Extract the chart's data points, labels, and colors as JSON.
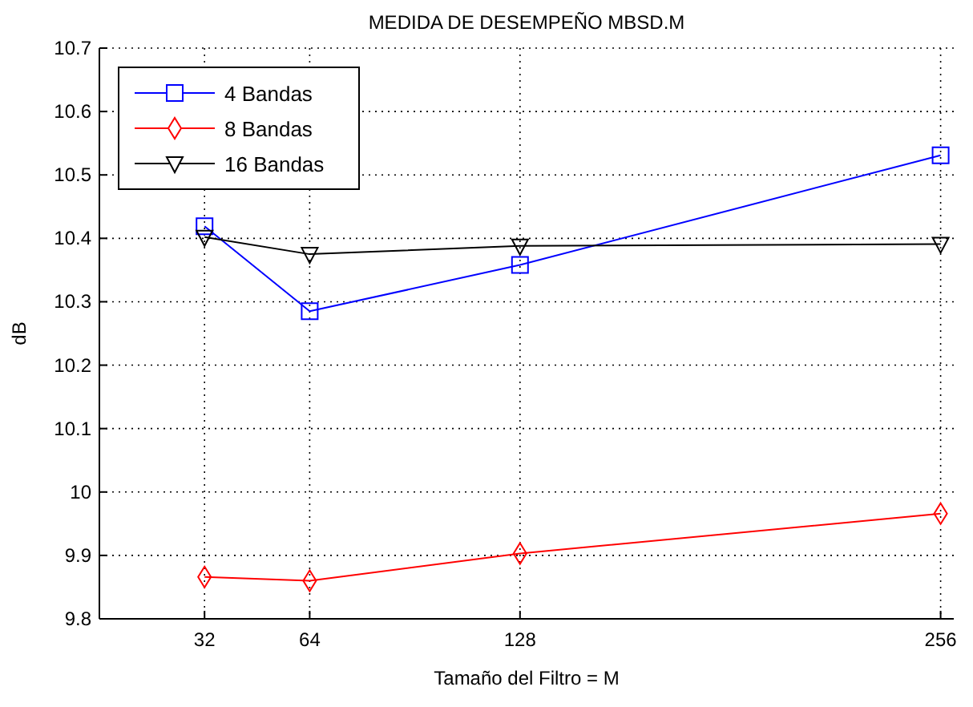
{
  "chart_data": {
    "type": "line",
    "title": "MEDIDA DE DESEMPEÑO MBSD.M",
    "xlabel": "Tamaño del Filtro = M",
    "ylabel": "dB",
    "x": [
      32,
      64,
      128,
      256
    ],
    "series": [
      {
        "name": "4 Bandas",
        "color": "#0000ff",
        "marker": "square",
        "values": [
          10.419,
          10.285,
          10.358,
          10.531
        ]
      },
      {
        "name": "8 Bandas",
        "color": "#ff0000",
        "marker": "diamond",
        "values": [
          9.866,
          9.86,
          9.903,
          9.966
        ]
      },
      {
        "name": "16 Bandas",
        "color": "#000000",
        "marker": "triangle",
        "values": [
          10.402,
          10.375,
          10.388,
          10.391
        ]
      }
    ],
    "xlim": [
      0,
      260
    ],
    "xticks": [
      32,
      64,
      128,
      256
    ],
    "ylim": [
      9.8,
      10.7
    ],
    "yticks": [
      9.8,
      9.9,
      10,
      10.1,
      10.2,
      10.3,
      10.4,
      10.5,
      10.6,
      10.7
    ],
    "grid": true,
    "legend": "top left",
    "line_style": "solid"
  }
}
